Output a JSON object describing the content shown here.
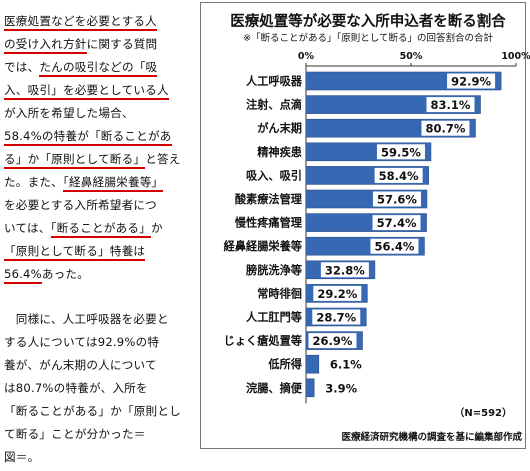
{
  "article": {
    "para1_lines": [
      [
        {
          "t": "医療処置などを必要とする人",
          "hl": "u"
        }
      ],
      [
        {
          "t": "の受け入れ方針",
          "hl": "u"
        },
        {
          "t": "に関する質問"
        }
      ],
      [
        {
          "t": "では、"
        },
        {
          "t": "たんの吸引などの「吸",
          "hl": "u"
        }
      ],
      [
        {
          "t": "入、吸引」を必要としている人",
          "hl": "u"
        }
      ],
      [
        {
          "t": "が入所を希望した場合、"
        }
      ],
      [
        {
          "t": "58.4%の特養が「断ることがあ",
          "hl": "u"
        }
      ],
      [
        {
          "t": "る」か「原則として断る」",
          "hl": "u"
        },
        {
          "t": "と答え"
        }
      ],
      [
        {
          "t": "た。また、"
        },
        {
          "t": "「経鼻経腸栄養等」",
          "hl": "u"
        }
      ],
      [
        {
          "t": "を必要とする入所希望者につ"
        }
      ],
      [
        {
          "t": "いては、"
        },
        {
          "t": "「断ることがある」",
          "hl": "u"
        },
        {
          "t": "か"
        }
      ],
      [
        {
          "t": "「原則として断る」特養は",
          "hl": "u"
        }
      ],
      [
        {
          "t": "56.4%",
          "hl": "u"
        },
        {
          "t": "あった。"
        }
      ]
    ],
    "para2_lines": [
      "　同様に、人工呼吸器を必要と",
      "する人については92.9%の特",
      "養が、がん末期の人について",
      "は80.7%の特養が、入所を",
      "「断ることがある」か「原則とし",
      "て断る」ことが分かった＝",
      "図＝。"
    ]
  },
  "chart_data": {
    "type": "bar",
    "orientation": "horizontal",
    "title": "医療処置等が必要な入所申込者を断る割合",
    "subtitle": "※「断ることがある」「原則として断る」の回答割合の合計",
    "categories": [
      "人工呼吸器",
      "注射、点滴",
      "がん末期",
      "精神疾患",
      "吸入、吸引",
      "酸素療法管理",
      "慢性疼痛管理",
      "経鼻経腸栄養等",
      "膀胱洗浄等",
      "常時徘徊",
      "人工肛門等",
      "じょく瘡処置等",
      "低所得",
      "浣腸、摘便"
    ],
    "values": [
      92.9,
      83.1,
      80.7,
      59.5,
      58.4,
      57.6,
      57.4,
      56.4,
      32.8,
      29.2,
      28.7,
      26.9,
      6.1,
      3.9
    ],
    "value_labels": [
      "92.9%",
      "83.1%",
      "80.7%",
      "59.5%",
      "58.4%",
      "57.6%",
      "57.4%",
      "56.4%",
      "32.8%",
      "29.2%",
      "28.7%",
      "26.9%",
      "6.1%",
      "3.9%"
    ],
    "axis_ticks": [
      "0%",
      "50%",
      "100%"
    ],
    "xlim": [
      0,
      100
    ],
    "note": "（N=592）",
    "source": "医療経済研究機構の調査を基に編集部作成",
    "colors": {
      "bar": "#3768b3",
      "bar_label_box": "#ffffff",
      "border": "#333333"
    }
  }
}
